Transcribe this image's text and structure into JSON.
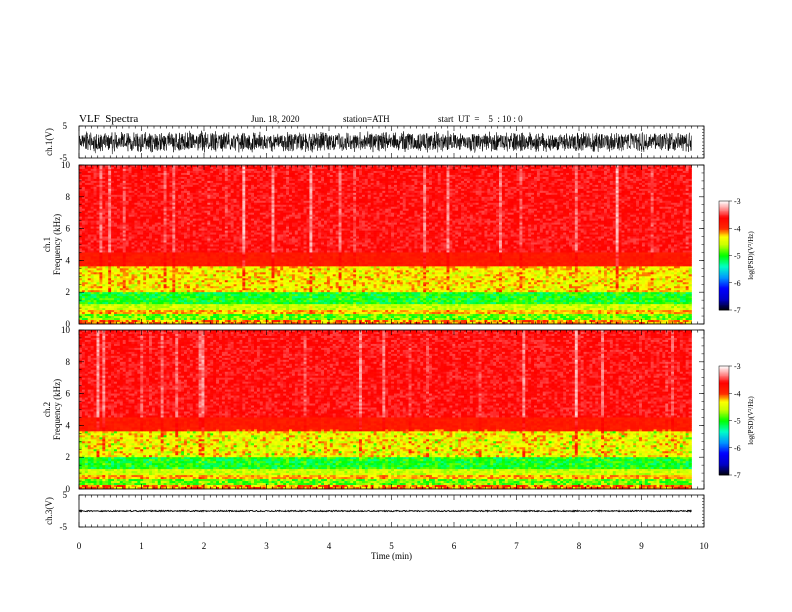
{
  "header": {
    "title": "VLF  Spectra",
    "date": "Jun. 18, 2020",
    "station": "station=ATH",
    "start": "start  UT  =    5  : 10 : 0"
  },
  "chart_data": [
    {
      "type": "line",
      "panel": "ch.1 waveform",
      "ylabel": "ch.1(V)",
      "ylim": [
        -5,
        5
      ],
      "yticks": [
        "5",
        "-5"
      ],
      "xlim": [
        0,
        10
      ],
      "data_extent_min": [
        0,
        9.8
      ],
      "signal_amplitude_V": 3.4
    },
    {
      "type": "heatmap",
      "panel": "ch.1 spectrogram",
      "ylabel_top": "ch.1",
      "ylabel": "Frequency  (kHz)",
      "ylim": [
        0,
        10
      ],
      "yticks": [
        "0",
        "2",
        "4",
        "6",
        "8",
        "10"
      ],
      "xlim": [
        0,
        10
      ],
      "colorbar": {
        "label": "log(PSD)(V²/Hz)",
        "range": [
          -7,
          -3
        ],
        "ticks": [
          "-3",
          "-4",
          "-5",
          "-6",
          "-7"
        ]
      }
    },
    {
      "type": "heatmap",
      "panel": "ch.2 spectrogram",
      "ylabel_top": "ch.2",
      "ylabel": "Frequency  (kHz)",
      "ylim": [
        0,
        10
      ],
      "yticks": [
        "0",
        "2",
        "4",
        "6",
        "8",
        "10"
      ],
      "xlim": [
        0,
        10
      ],
      "colorbar": {
        "label": "log(PSD)(V²/Hz)",
        "range": [
          -7,
          -3
        ],
        "ticks": [
          "-3",
          "-4",
          "-5",
          "-6",
          "-7"
        ]
      }
    },
    {
      "type": "line",
      "panel": "ch.3 waveform",
      "ylabel": "ch.3(V)",
      "ylim": [
        -5,
        5
      ],
      "yticks": [
        "5",
        "-5"
      ],
      "xlim": [
        0,
        10
      ],
      "level_V": 0,
      "signal_amplitude_V": 0.2,
      "xlabel": "Time  (min)",
      "xticks": [
        "0",
        "1",
        "2",
        "3",
        "4",
        "5",
        "6",
        "7",
        "8",
        "9",
        "10"
      ]
    }
  ],
  "colors": {
    "psd_scale": [
      "#000000",
      "#0000ff",
      "#00a0ff",
      "#00ff80",
      "#00ff00",
      "#ffff00",
      "#ff8000",
      "#ff0000",
      "#ff8080",
      "#ffffff"
    ]
  }
}
